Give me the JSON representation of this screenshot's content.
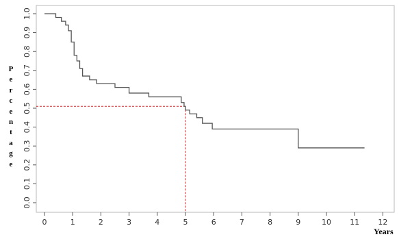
{
  "chart_data": {
    "type": "line",
    "subtype": "kaplan-meier step curve",
    "title": "",
    "xlabel": "Years",
    "ylabel": "Percentage",
    "xlim": [
      0,
      12
    ],
    "ylim": [
      0,
      1.0
    ],
    "x_ticks": [
      "0",
      "1",
      "2",
      "3",
      "4",
      "5",
      "6",
      "7",
      "8",
      "9",
      "10",
      "11",
      "12"
    ],
    "y_ticks": [
      "0.0",
      "0.1",
      "0.2",
      "0.3",
      "0.4",
      "0.5",
      "0.6",
      "0.7",
      "0.8",
      "0.9",
      "1.0"
    ],
    "grid": true,
    "series": [
      {
        "color": "#555555",
        "steps": [
          [
            0,
            1.0
          ],
          [
            0.4,
            0.98
          ],
          [
            0.6,
            0.96
          ],
          [
            0.75,
            0.94
          ],
          [
            0.85,
            0.91
          ],
          [
            0.95,
            0.85
          ],
          [
            1.05,
            0.78
          ],
          [
            1.15,
            0.75
          ],
          [
            1.25,
            0.71
          ],
          [
            1.35,
            0.67
          ],
          [
            1.6,
            0.65
          ],
          [
            1.85,
            0.63
          ],
          [
            2.3,
            0.63
          ],
          [
            2.5,
            0.61
          ],
          [
            3.0,
            0.58
          ],
          [
            3.7,
            0.56
          ],
          [
            4.85,
            0.53
          ],
          [
            4.95,
            0.51
          ],
          [
            5.0,
            0.49
          ],
          [
            5.15,
            0.47
          ],
          [
            5.4,
            0.45
          ],
          [
            5.6,
            0.42
          ],
          [
            5.95,
            0.39
          ],
          [
            9.0,
            0.29
          ],
          [
            11.35,
            0.29
          ]
        ]
      }
    ],
    "reference_lines": {
      "color": "#d62728",
      "style": "dashed",
      "x": 5,
      "y": 0.51
    }
  }
}
